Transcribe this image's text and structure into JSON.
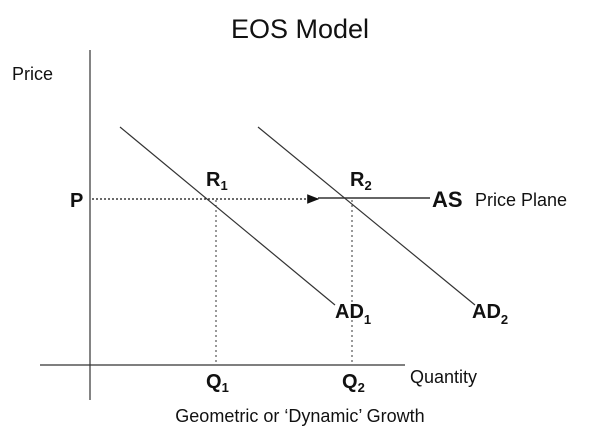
{
  "title": "EOS Model",
  "axes": {
    "y_label": "Price",
    "x_label": "Quantity"
  },
  "price_point": "P",
  "supply": {
    "label": "AS",
    "note": "Price Plane"
  },
  "points": [
    {
      "label": "R",
      "sub": "1"
    },
    {
      "label": "R",
      "sub": "2"
    }
  ],
  "curves": [
    {
      "label": "AD",
      "sub": "1"
    },
    {
      "label": "AD",
      "sub": "2"
    }
  ],
  "quantities": [
    {
      "label": "Q",
      "sub": "1"
    },
    {
      "label": "Q",
      "sub": "2"
    }
  ],
  "caption": "Geometric or ‘Dynamic’ Growth"
}
